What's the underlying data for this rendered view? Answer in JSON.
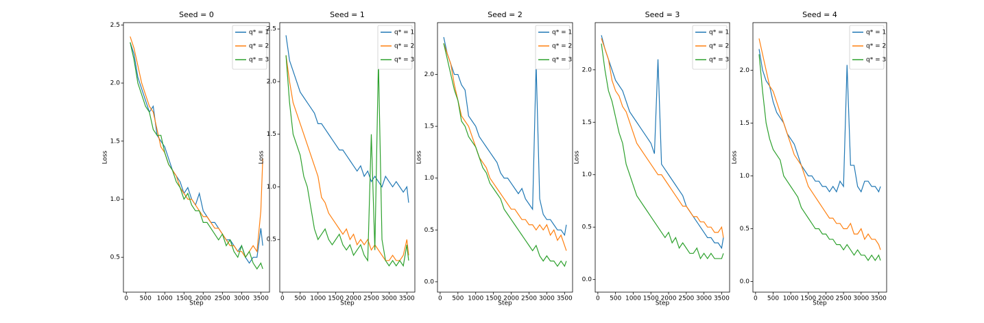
{
  "chart_data": [
    {
      "type": "line",
      "title": "Seed = 0",
      "xlabel": "Step",
      "ylabel": "Loss",
      "x": [
        100,
        200,
        300,
        400,
        500,
        600,
        700,
        800,
        900,
        1000,
        1100,
        1200,
        1300,
        1400,
        1500,
        1600,
        1700,
        1800,
        1900,
        2000,
        2100,
        2200,
        2300,
        2400,
        2500,
        2600,
        2700,
        2800,
        2900,
        3000,
        3100,
        3200,
        3300,
        3400,
        3500,
        3550
      ],
      "xlim": [
        -75,
        3725
      ],
      "xticks": [
        0,
        500,
        1000,
        1500,
        2000,
        2500,
        3000,
        3500
      ],
      "ylim": [
        0.2,
        2.52
      ],
      "yticks": [
        0.5,
        {
          "value": 1,
          "label": "1.0"
        },
        1.5,
        {
          "value": 2,
          "label": "2.0"
        },
        2.5
      ],
      "legend": "upper right",
      "series": [
        {
          "name": "q* = 1",
          "color": "#1f77b4",
          "values": [
            2.35,
            2.25,
            2.05,
            1.95,
            1.85,
            1.75,
            1.8,
            1.55,
            1.5,
            1.45,
            1.35,
            1.25,
            1.2,
            1.15,
            1.05,
            1.1,
            1.0,
            0.95,
            1.05,
            0.9,
            0.85,
            0.8,
            0.8,
            0.75,
            0.7,
            0.65,
            0.65,
            0.6,
            0.55,
            0.6,
            0.5,
            0.45,
            0.5,
            0.5,
            0.75,
            0.6
          ]
        },
        {
          "name": "q* = 2",
          "color": "#ff7f0e",
          "values": [
            2.4,
            2.3,
            2.15,
            2.0,
            1.9,
            1.8,
            1.75,
            1.6,
            1.45,
            1.4,
            1.3,
            1.25,
            1.2,
            1.1,
            1.05,
            1.0,
            1.0,
            0.95,
            0.9,
            0.85,
            0.85,
            0.8,
            0.75,
            0.75,
            0.7,
            0.65,
            0.6,
            0.6,
            0.55,
            0.55,
            0.5,
            0.55,
            0.6,
            0.55,
            0.9,
            1.35
          ]
        },
        {
          "name": "q* = 3",
          "color": "#2ca02c",
          "values": [
            2.35,
            2.2,
            2.0,
            1.9,
            1.8,
            1.75,
            1.6,
            1.55,
            1.55,
            1.4,
            1.3,
            1.25,
            1.15,
            1.1,
            1.0,
            1.05,
            0.95,
            0.9,
            0.9,
            0.8,
            0.8,
            0.75,
            0.7,
            0.65,
            0.7,
            0.6,
            0.65,
            0.55,
            0.5,
            0.6,
            0.5,
            0.55,
            0.45,
            0.4,
            0.45,
            0.4
          ]
        }
      ]
    },
    {
      "type": "line",
      "title": "Seed = 1",
      "xlabel": "Step",
      "ylabel": "Loss",
      "x": [
        100,
        200,
        300,
        400,
        500,
        600,
        700,
        800,
        900,
        1000,
        1100,
        1200,
        1300,
        1400,
        1500,
        1600,
        1700,
        1800,
        1900,
        2000,
        2100,
        2200,
        2300,
        2400,
        2500,
        2600,
        2700,
        2800,
        2900,
        3000,
        3100,
        3200,
        3300,
        3400,
        3500,
        3550
      ],
      "xlim": [
        -75,
        3725
      ],
      "xticks": [
        0,
        500,
        1000,
        1500,
        2000,
        2500,
        3000,
        3500
      ],
      "ylim": [
        0.0,
        2.56
      ],
      "yticks": [
        0.5,
        {
          "value": 1,
          "label": "1.0"
        },
        1.5,
        {
          "value": 2,
          "label": "2.0"
        },
        2.5
      ],
      "legend": "upper right",
      "series": [
        {
          "name": "q* = 1",
          "color": "#1f77b4",
          "values": [
            2.44,
            2.2,
            2.1,
            2.0,
            1.9,
            1.85,
            1.8,
            1.75,
            1.7,
            1.6,
            1.6,
            1.55,
            1.5,
            1.45,
            1.4,
            1.35,
            1.35,
            1.3,
            1.25,
            1.2,
            1.15,
            1.2,
            1.1,
            1.15,
            1.05,
            1.1,
            1.05,
            1.0,
            1.1,
            1.05,
            1.0,
            1.05,
            1.0,
            0.95,
            1.0,
            0.85
          ]
        },
        {
          "name": "q* = 2",
          "color": "#ff7f0e",
          "values": [
            2.25,
            2.0,
            1.8,
            1.7,
            1.6,
            1.5,
            1.4,
            1.3,
            1.2,
            1.1,
            0.9,
            0.85,
            0.75,
            0.7,
            0.65,
            0.6,
            0.55,
            0.6,
            0.5,
            0.55,
            0.45,
            0.5,
            0.45,
            0.5,
            0.4,
            0.45,
            0.4,
            0.35,
            0.3,
            0.3,
            0.35,
            0.3,
            0.3,
            0.35,
            0.5,
            0.35
          ]
        },
        {
          "name": "q* = 3",
          "color": "#2ca02c",
          "values": [
            2.25,
            1.8,
            1.5,
            1.4,
            1.3,
            1.1,
            1.0,
            0.8,
            0.6,
            0.5,
            0.55,
            0.6,
            0.5,
            0.45,
            0.5,
            0.55,
            0.45,
            0.4,
            0.45,
            0.35,
            0.4,
            0.45,
            0.35,
            0.3,
            1.5,
            0.4,
            2.2,
            0.5,
            0.3,
            0.25,
            0.3,
            0.25,
            0.3,
            0.25,
            0.45,
            0.3
          ]
        }
      ]
    },
    {
      "type": "line",
      "title": "Seed = 2",
      "xlabel": "Step",
      "ylabel": "Loss",
      "x": [
        100,
        200,
        300,
        400,
        500,
        600,
        700,
        800,
        900,
        1000,
        1100,
        1200,
        1300,
        1400,
        1500,
        1600,
        1700,
        1800,
        1900,
        2000,
        2100,
        2200,
        2300,
        2400,
        2500,
        2600,
        2700,
        2800,
        2900,
        3000,
        3100,
        3200,
        3300,
        3400,
        3500,
        3550
      ],
      "xlim": [
        -75,
        3725
      ],
      "xticks": [
        0,
        500,
        1000,
        1500,
        2000,
        2500,
        3000,
        3500
      ],
      "ylim": [
        -0.1,
        2.5
      ],
      "yticks": [
        {
          "value": 0,
          "label": "0.0"
        },
        0.5,
        {
          "value": 1,
          "label": "1.0"
        },
        1.5,
        {
          "value": 2,
          "label": "2.0"
        }
      ],
      "legend": "upper right",
      "series": [
        {
          "name": "q* = 1",
          "color": "#1f77b4",
          "values": [
            2.36,
            2.2,
            2.1,
            2.0,
            2.0,
            1.9,
            1.85,
            1.6,
            1.55,
            1.5,
            1.4,
            1.35,
            1.3,
            1.25,
            1.2,
            1.15,
            1.05,
            1.0,
            1.0,
            0.95,
            0.9,
            0.85,
            0.9,
            0.8,
            0.75,
            0.7,
            2.1,
            0.8,
            0.65,
            0.6,
            0.6,
            0.55,
            0.5,
            0.5,
            0.45,
            0.55
          ]
        },
        {
          "name": "q* = 2",
          "color": "#ff7f0e",
          "values": [
            2.3,
            2.2,
            2.1,
            1.9,
            1.75,
            1.6,
            1.55,
            1.5,
            1.4,
            1.3,
            1.2,
            1.15,
            1.1,
            1.0,
            0.95,
            0.9,
            0.85,
            0.8,
            0.75,
            0.7,
            0.7,
            0.65,
            0.6,
            0.6,
            0.55,
            0.55,
            0.5,
            0.55,
            0.5,
            0.55,
            0.45,
            0.5,
            0.4,
            0.45,
            0.35,
            0.3
          ]
        },
        {
          "name": "q* = 3",
          "color": "#2ca02c",
          "values": [
            2.3,
            2.15,
            2.0,
            1.85,
            1.75,
            1.55,
            1.5,
            1.4,
            1.35,
            1.3,
            1.2,
            1.1,
            1.05,
            0.95,
            0.9,
            0.85,
            0.8,
            0.7,
            0.65,
            0.6,
            0.55,
            0.5,
            0.45,
            0.4,
            0.35,
            0.3,
            0.35,
            0.25,
            0.2,
            0.25,
            0.2,
            0.2,
            0.15,
            0.2,
            0.15,
            0.2
          ]
        }
      ]
    },
    {
      "type": "line",
      "title": "Seed = 3",
      "xlabel": "Step",
      "ylabel": "Loss",
      "x": [
        100,
        200,
        300,
        400,
        500,
        600,
        700,
        800,
        900,
        1000,
        1100,
        1200,
        1300,
        1400,
        1500,
        1600,
        1700,
        1800,
        1900,
        2000,
        2100,
        2200,
        2300,
        2400,
        2500,
        2600,
        2700,
        2800,
        2900,
        3000,
        3100,
        3200,
        3300,
        3400,
        3500,
        3550
      ],
      "xlim": [
        -75,
        3725
      ],
      "xticks": [
        0,
        500,
        1000,
        1500,
        2000,
        2500,
        3000,
        3500
      ],
      "ylim": [
        -0.12,
        2.45
      ],
      "yticks": [
        {
          "value": 0,
          "label": "0.0"
        },
        0.5,
        {
          "value": 1,
          "label": "1.0"
        },
        1.5,
        {
          "value": 2,
          "label": "2.0"
        }
      ],
      "legend": "upper right",
      "series": [
        {
          "name": "q* = 1",
          "color": "#1f77b4",
          "values": [
            2.33,
            2.2,
            2.1,
            2.0,
            1.9,
            1.85,
            1.8,
            1.7,
            1.6,
            1.55,
            1.5,
            1.45,
            1.4,
            1.35,
            1.3,
            1.2,
            2.1,
            1.1,
            1.05,
            1.0,
            0.95,
            0.9,
            0.85,
            0.8,
            0.7,
            0.65,
            0.6,
            0.55,
            0.5,
            0.45,
            0.4,
            0.4,
            0.35,
            0.35,
            0.3,
            0.4
          ]
        },
        {
          "name": "q* = 2",
          "color": "#ff7f0e",
          "values": [
            2.3,
            2.2,
            2.1,
            1.9,
            1.8,
            1.75,
            1.65,
            1.6,
            1.5,
            1.4,
            1.3,
            1.25,
            1.2,
            1.15,
            1.1,
            1.05,
            1.0,
            1.0,
            0.95,
            0.9,
            0.85,
            0.8,
            0.75,
            0.7,
            0.7,
            0.65,
            0.6,
            0.6,
            0.55,
            0.55,
            0.5,
            0.5,
            0.45,
            0.45,
            0.5,
            0.4
          ]
        },
        {
          "name": "q* = 3",
          "color": "#2ca02c",
          "values": [
            2.25,
            2.0,
            1.8,
            1.7,
            1.55,
            1.4,
            1.3,
            1.1,
            1.0,
            0.9,
            0.8,
            0.75,
            0.7,
            0.65,
            0.6,
            0.55,
            0.5,
            0.45,
            0.4,
            0.45,
            0.35,
            0.4,
            0.3,
            0.35,
            0.3,
            0.25,
            0.25,
            0.3,
            0.2,
            0.25,
            0.2,
            0.25,
            0.2,
            0.2,
            0.2,
            0.25
          ]
        }
      ]
    },
    {
      "type": "line",
      "title": "Seed = 4",
      "xlabel": "Step",
      "ylabel": "Loss",
      "x": [
        100,
        200,
        300,
        400,
        500,
        600,
        700,
        800,
        900,
        1000,
        1100,
        1200,
        1300,
        1400,
        1500,
        1600,
        1700,
        1800,
        1900,
        2000,
        2100,
        2200,
        2300,
        2400,
        2500,
        2600,
        2700,
        2800,
        2900,
        3000,
        3100,
        3200,
        3300,
        3400,
        3500,
        3550
      ],
      "xlim": [
        -75,
        3725
      ],
      "xticks": [
        0,
        500,
        1000,
        1500,
        2000,
        2500,
        3000,
        3500
      ],
      "ylim": [
        -0.1,
        2.45
      ],
      "yticks": [
        {
          "value": 0,
          "label": "0.0"
        },
        0.5,
        {
          "value": 1,
          "label": "1.0"
        },
        1.5,
        {
          "value": 2,
          "label": "2.0"
        }
      ],
      "legend": "upper right",
      "series": [
        {
          "name": "q* = 1",
          "color": "#1f77b4",
          "values": [
            2.2,
            2.0,
            1.9,
            1.85,
            1.7,
            1.6,
            1.55,
            1.5,
            1.4,
            1.35,
            1.3,
            1.2,
            1.1,
            1.05,
            1.0,
            1.0,
            0.95,
            0.95,
            0.9,
            0.9,
            0.85,
            0.9,
            0.85,
            0.95,
            0.9,
            2.05,
            1.1,
            1.1,
            0.9,
            0.85,
            0.95,
            0.95,
            0.9,
            0.9,
            0.85,
            0.9
          ]
        },
        {
          "name": "q* = 2",
          "color": "#ff7f0e",
          "values": [
            2.3,
            2.15,
            2.0,
            1.85,
            1.8,
            1.7,
            1.6,
            1.5,
            1.4,
            1.3,
            1.2,
            1.15,
            1.1,
            1.0,
            0.9,
            0.85,
            0.8,
            0.75,
            0.7,
            0.65,
            0.6,
            0.6,
            0.55,
            0.55,
            0.5,
            0.5,
            0.55,
            0.45,
            0.45,
            0.5,
            0.4,
            0.45,
            0.4,
            0.4,
            0.35,
            0.3
          ]
        },
        {
          "name": "q* = 3",
          "color": "#2ca02c",
          "values": [
            2.15,
            1.8,
            1.5,
            1.35,
            1.25,
            1.2,
            1.15,
            1.0,
            0.95,
            0.9,
            0.85,
            0.8,
            0.7,
            0.65,
            0.6,
            0.55,
            0.5,
            0.5,
            0.45,
            0.45,
            0.4,
            0.4,
            0.35,
            0.35,
            0.3,
            0.35,
            0.3,
            0.25,
            0.3,
            0.25,
            0.25,
            0.2,
            0.25,
            0.2,
            0.25,
            0.2
          ]
        }
      ]
    }
  ]
}
